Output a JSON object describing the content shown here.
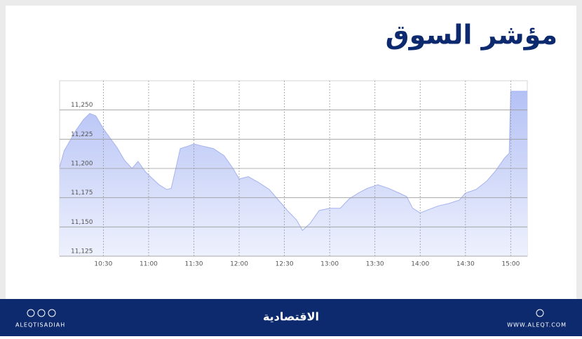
{
  "chart_data": {
    "type": "area",
    "title": "مؤشر السوق",
    "x": [
      601,
      604,
      608,
      612,
      617,
      621,
      625,
      630,
      635,
      639,
      644,
      649,
      653,
      658,
      662,
      667,
      672,
      675,
      678,
      681,
      686,
      690,
      696,
      703,
      710,
      716,
      720,
      726,
      733,
      740,
      746,
      752,
      758,
      762,
      767,
      773,
      780,
      787,
      793,
      799,
      805,
      812,
      819,
      826,
      831,
      835,
      840,
      846,
      852,
      859,
      866,
      870,
      877,
      884,
      890,
      896,
      899,
      900,
      911
    ],
    "values": [
      11201,
      11215,
      11224,
      11233,
      11242,
      11247,
      11245,
      11234,
      11225,
      11218,
      11207,
      11200,
      11206,
      11197,
      11192,
      11186,
      11182,
      11183,
      11200,
      11217,
      11219,
      11221,
      11219,
      11217,
      11211,
      11200,
      11191,
      11193,
      11188,
      11182,
      11173,
      11164,
      11156,
      11147,
      11153,
      11164,
      11166,
      11166,
      11174,
      11179,
      11183,
      11186,
      11183,
      11179,
      11176,
      11166,
      11162,
      11165,
      11168,
      11170,
      11173,
      11179,
      11182,
      11189,
      11198,
      11209,
      11213,
      11266,
      11266
    ],
    "xlim": [
      601,
      911
    ],
    "xticks": [
      {
        "value": 630,
        "label": "10:30"
      },
      {
        "value": 660,
        "label": "11:00"
      },
      {
        "value": 690,
        "label": "11:30"
      },
      {
        "value": 720,
        "label": "12:00"
      },
      {
        "value": 750,
        "label": "12:30"
      },
      {
        "value": 780,
        "label": "13:00"
      },
      {
        "value": 810,
        "label": "13:30"
      },
      {
        "value": 840,
        "label": "14:00"
      },
      {
        "value": 870,
        "label": "14:30"
      },
      {
        "value": 900,
        "label": "15:00"
      }
    ],
    "ylim": [
      11125,
      11275
    ],
    "yticks": [
      {
        "value": 11125,
        "label": "11,125"
      },
      {
        "value": 11150,
        "label": "11,150"
      },
      {
        "value": 11175,
        "label": "11,175"
      },
      {
        "value": 11200,
        "label": "11,200"
      },
      {
        "value": 11225,
        "label": "11,225"
      },
      {
        "value": 11250,
        "label": "11,250"
      }
    ],
    "color": "#c3cdf7",
    "grid": true
  },
  "footer": {
    "handle": "ALEQTISADIAH",
    "brand": "الاقتصادية",
    "website": "WWW.ALEQT.COM"
  }
}
